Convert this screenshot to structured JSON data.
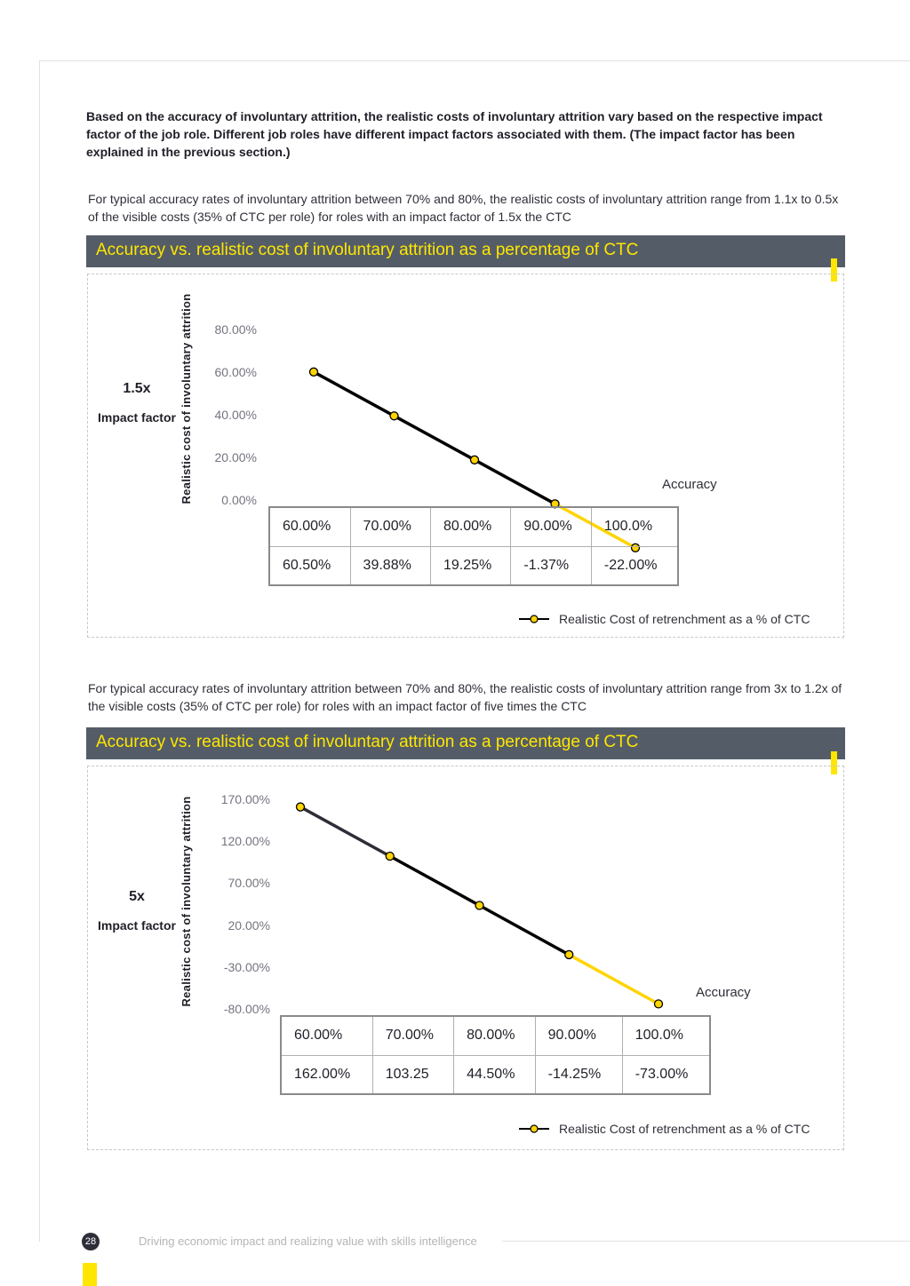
{
  "intro": "Based on the accuracy of involuntary attrition, the realistic costs of involuntary attrition vary based on the respective impact factor of the job role. Different job roles have different impact factors associated with them. (The impact factor has been explained in the previous section.)",
  "section1": {
    "note": "For typical accuracy rates of involuntary attrition between 70% and 80%, the realistic costs of involuntary attrition range from 1.1x to 0.5x of the visible costs (35% of CTC per role) for roles with an impact factor of 1.5x the CTC",
    "title": "Accuracy vs. realistic cost of involuntary attrition as a percentage of CTC",
    "factor_value": "1.5x",
    "factor_label": "Impact factor",
    "ylabel": "Realistic cost of involuntary attrition",
    "yticks": [
      "80.00%",
      "60.00%",
      "40.00%",
      "20.00%",
      "0.00%"
    ],
    "xlabel": "Accuracy",
    "table_header": [
      "60.00%",
      "70.00%",
      "80.00%",
      "90.00%",
      "100.0%"
    ],
    "table_values": [
      "60.50%",
      "39.88%",
      "19.25%",
      "-1.37%",
      "-22.00%"
    ],
    "legend": "Realistic Cost of retrenchment as a % of CTC"
  },
  "section2": {
    "note": "For typical accuracy rates of involuntary attrition between 70% and 80%, the realistic costs of involuntary attrition range from 3x to 1.2x of the visible costs (35% of CTC per role) for roles with an impact factor of five times the CTC",
    "title": "Accuracy vs. realistic cost of involuntary attrition as a percentage of CTC",
    "factor_value": "5x",
    "factor_label": "Impact factor",
    "ylabel": "Realistic cost of involuntary attrition",
    "yticks": [
      "170.00%",
      "120.00%",
      "70.00%",
      "20.00%",
      "-30.00%",
      "-80.00%"
    ],
    "xlabel": "Accuracy",
    "table_header": [
      "60.00%",
      "70.00%",
      "80.00%",
      "90.00%",
      "100.0%"
    ],
    "table_values": [
      "162.00%",
      "103.25",
      "44.50%",
      "-14.25%",
      "-73.00%"
    ],
    "legend": "Realistic Cost of retrenchment as a % of CTC"
  },
  "chart_data": [
    {
      "type": "line",
      "title": "Accuracy vs. realistic cost of involuntary attrition as a percentage of CTC",
      "xlabel": "Accuracy",
      "ylabel": "Realistic cost of involuntary attrition",
      "x": [
        "60.00%",
        "70.00%",
        "80.00%",
        "90.00%",
        "100.0%"
      ],
      "x_values": [
        60,
        70,
        80,
        90,
        100
      ],
      "series": [
        {
          "name": "Realistic Cost of retrenchment as a % of CTC",
          "values": [
            60.5,
            39.88,
            19.25,
            -1.37,
            -22.0
          ]
        }
      ],
      "ylim": [
        0,
        80
      ],
      "yticks": [
        80,
        60,
        40,
        20,
        0
      ],
      "grid": false,
      "legend_position": "bottom-right",
      "line_colors": [
        "#000000",
        "#000000",
        "#000000",
        "#ffd400"
      ],
      "marker_color": "#ffd400"
    },
    {
      "type": "line",
      "title": "Accuracy vs. realistic cost of involuntary attrition as a percentage of CTC",
      "xlabel": "Accuracy",
      "ylabel": "Realistic cost of involuntary attrition",
      "x": [
        "60.00%",
        "70.00%",
        "80.00%",
        "90.00%",
        "100.0%"
      ],
      "x_values": [
        60,
        70,
        80,
        90,
        100
      ],
      "series": [
        {
          "name": "Realistic Cost of retrenchment as a % of CTC",
          "values": [
            162.0,
            103.25,
            44.5,
            -14.25,
            -73.0
          ]
        }
      ],
      "ylim": [
        -80,
        170
      ],
      "yticks": [
        170,
        120,
        70,
        20,
        -30,
        -80
      ],
      "grid": false,
      "legend_position": "bottom-right",
      "line_colors": [
        "#2e2e38",
        "#000000",
        "#000000",
        "#ffd400"
      ],
      "marker_color": "#ffd400"
    }
  ],
  "footer": {
    "page_number": "28",
    "text": "Driving economic impact and realizing value with skills intelligence"
  },
  "colors": {
    "accent_yellow": "#ffe600",
    "title_bar": "#545d67"
  }
}
